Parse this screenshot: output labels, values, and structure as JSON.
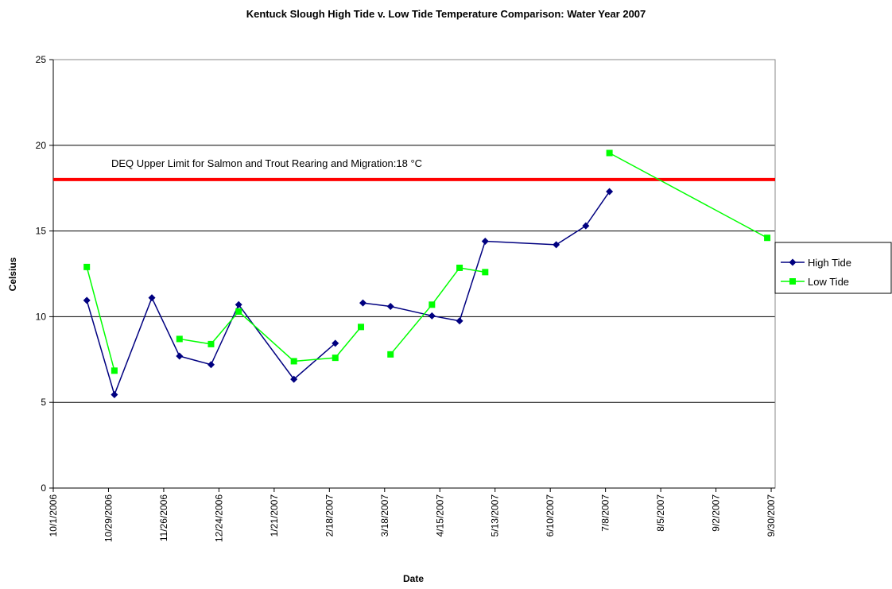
{
  "chart_data": {
    "type": "line",
    "title": "Kentuck Slough High Tide v. Low Tide Temperature Comparison: Water Year 2007",
    "x_label": "Date",
    "y_label": "Celsius",
    "x": [
      "2006-10-18",
      "2006-11-01",
      "2006-11-20",
      "2006-12-04",
      "2006-12-20",
      "2007-01-03",
      "2007-01-31",
      "2007-02-21",
      "2007-03-06",
      "2007-03-07",
      "2007-03-21",
      "2007-04-11",
      "2007-04-25",
      "2007-05-08",
      "2007-06-13",
      "2007-06-28",
      "2007-07-10",
      "2007-09-28"
    ],
    "series": [
      {
        "name": "High Tide",
        "color": "#000080",
        "marker": "diamond",
        "values": [
          10.95,
          5.45,
          11.1,
          7.7,
          7.2,
          10.7,
          6.35,
          8.45,
          null,
          10.8,
          10.6,
          10.05,
          9.75,
          14.4,
          14.2,
          15.3,
          17.3,
          null
        ]
      },
      {
        "name": "Low Tide",
        "color": "#00ff00",
        "marker": "square",
        "values": [
          12.9,
          6.85,
          null,
          8.7,
          8.4,
          10.3,
          7.4,
          7.6,
          9.4,
          null,
          7.8,
          10.7,
          12.85,
          12.6,
          null,
          null,
          19.55,
          14.6
        ]
      }
    ],
    "xlim": [
      "2006-10-01",
      "2007-10-02"
    ],
    "xticks": [
      {
        "value": "2006-10-01",
        "label": "10/1/2006"
      },
      {
        "value": "2006-10-29",
        "label": "10/29/2006"
      },
      {
        "value": "2006-11-26",
        "label": "11/26/2006"
      },
      {
        "value": "2006-12-24",
        "label": "12/24/2006"
      },
      {
        "value": "2007-01-21",
        "label": "1/21/2007"
      },
      {
        "value": "2007-02-18",
        "label": "2/18/2007"
      },
      {
        "value": "2007-03-18",
        "label": "3/18/2007"
      },
      {
        "value": "2007-04-15",
        "label": "4/15/2007"
      },
      {
        "value": "2007-05-13",
        "label": "5/13/2007"
      },
      {
        "value": "2007-06-10",
        "label": "6/10/2007"
      },
      {
        "value": "2007-07-08",
        "label": "7/8/2007"
      },
      {
        "value": "2007-08-05",
        "label": "8/5/2007"
      },
      {
        "value": "2007-09-02",
        "label": "9/2/2007"
      },
      {
        "value": "2007-09-30",
        "label": "9/30/2007"
      }
    ],
    "ylim": [
      0,
      25
    ],
    "yticks": [
      0,
      5,
      10,
      15,
      20,
      25
    ],
    "grid": true,
    "legend": "right",
    "reference_lines": [
      {
        "value": 18,
        "color": "#ff0000",
        "label": "DEQ Upper Limit for Salmon and Trout Rearing and Migration:18 °C"
      }
    ]
  }
}
